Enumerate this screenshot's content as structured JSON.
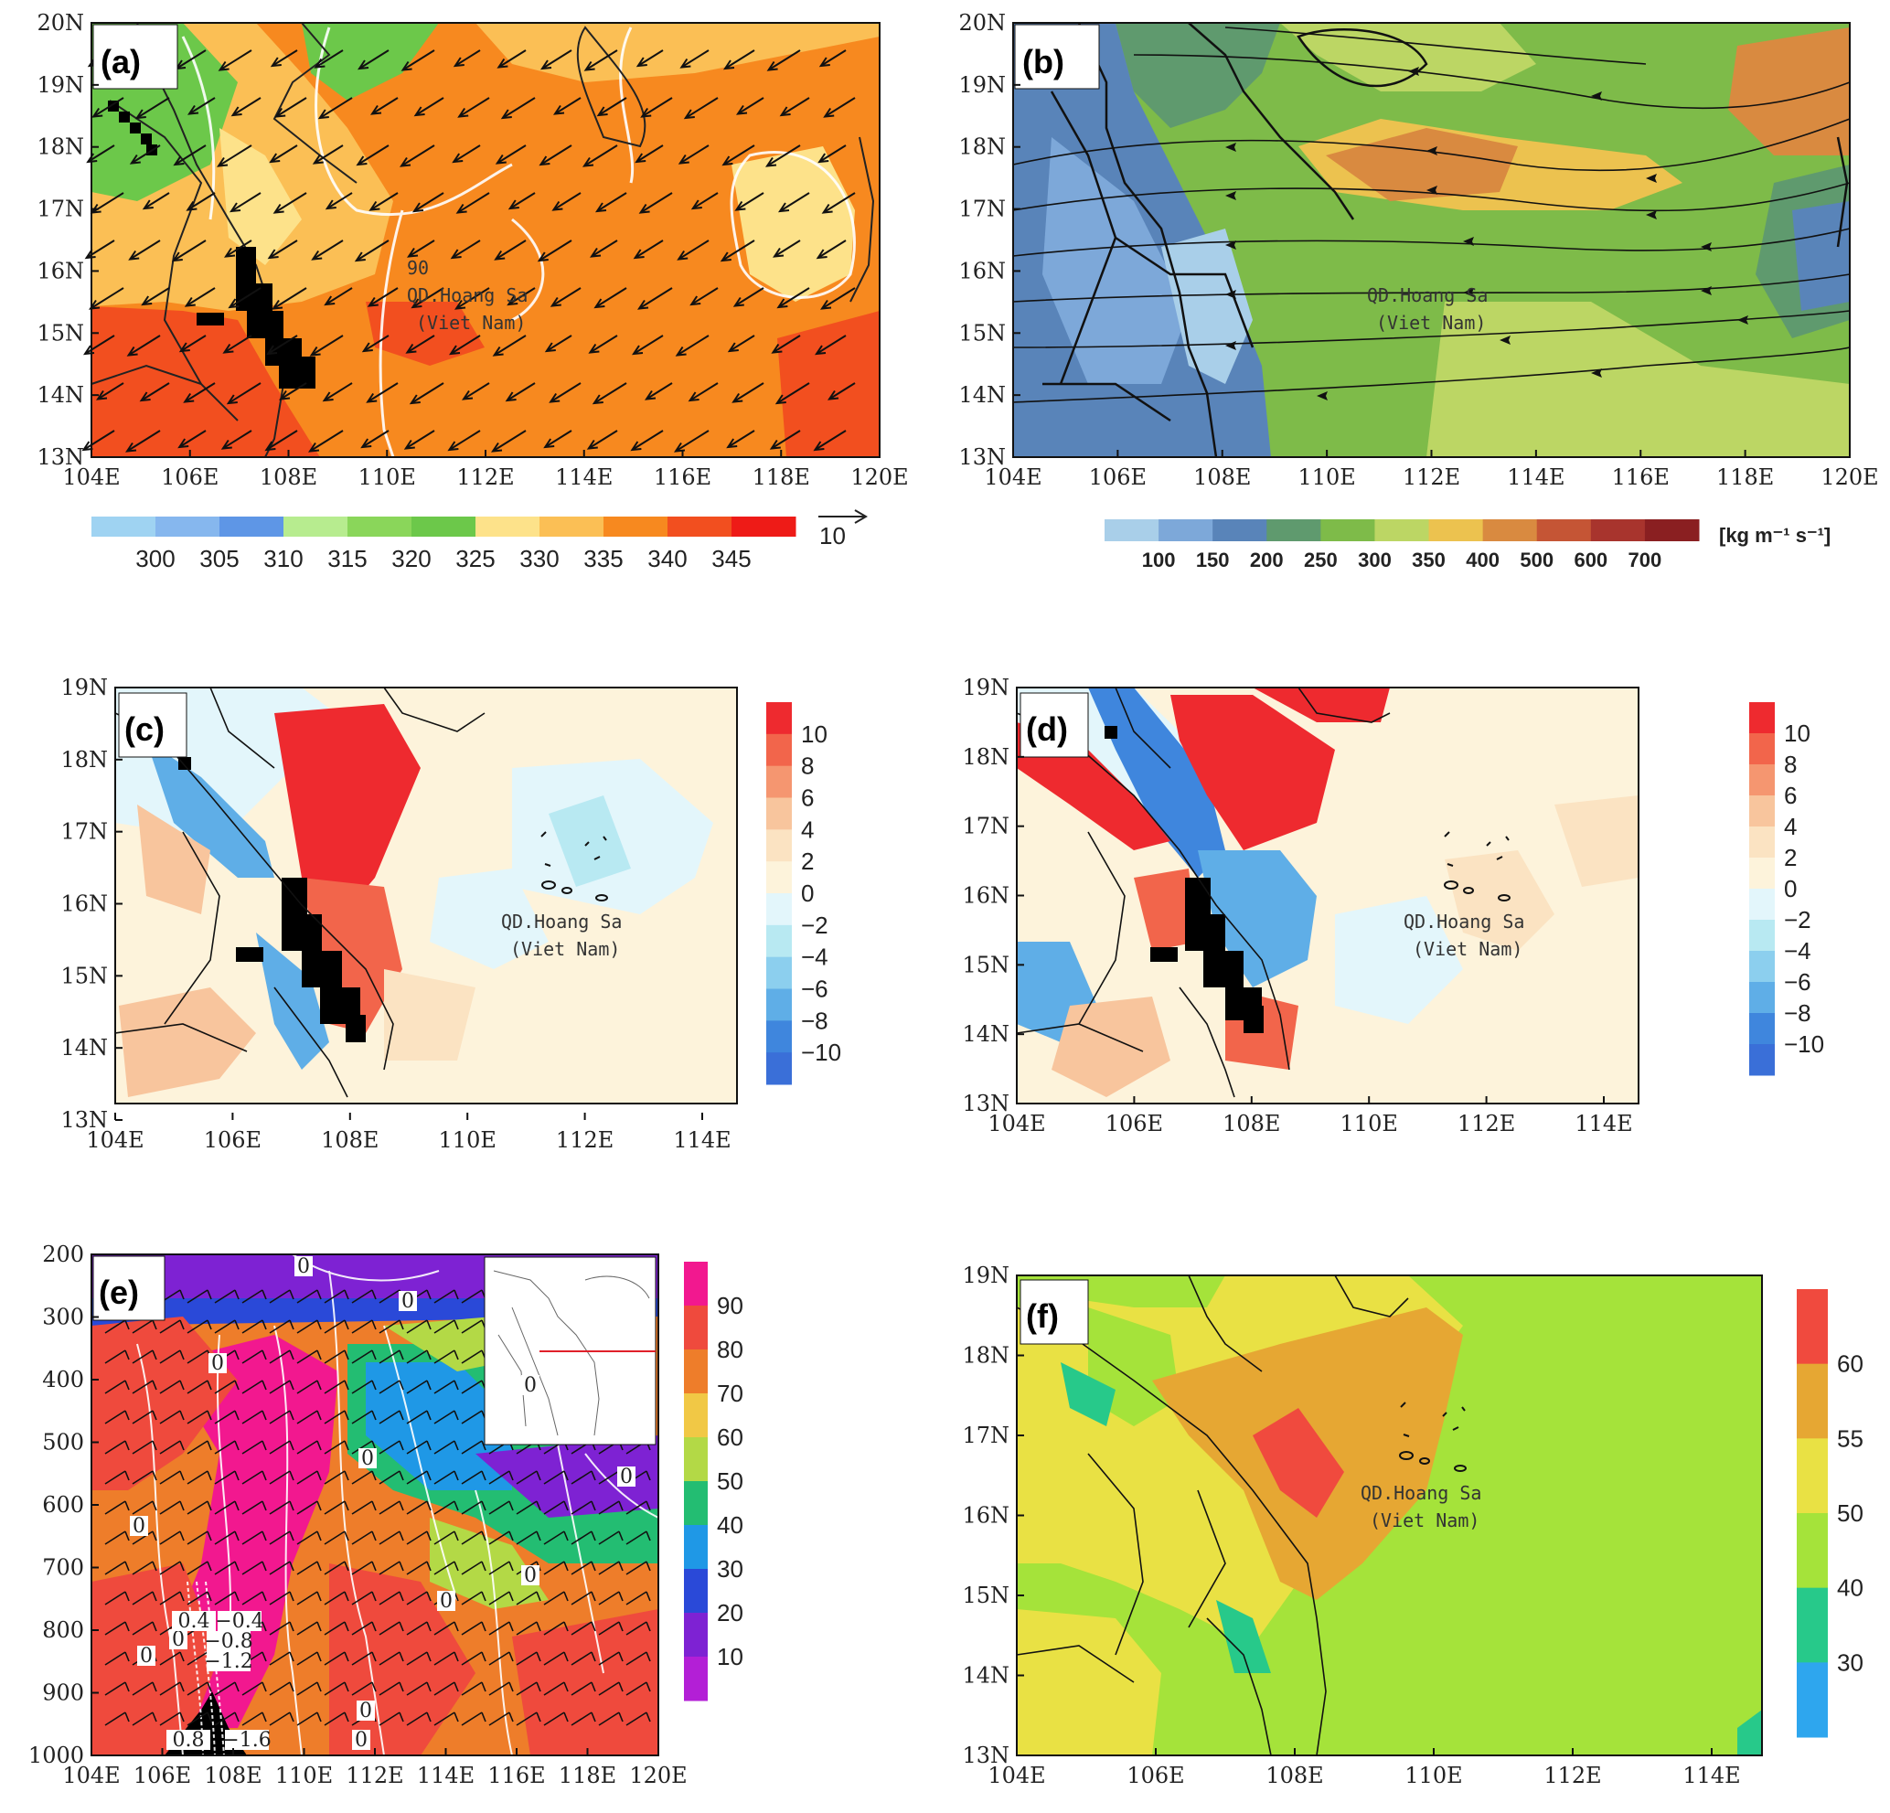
{
  "panels": {
    "a": {
      "label": "(a)",
      "x_ticks": [
        "104E",
        "106E",
        "108E",
        "110E",
        "112E",
        "114E",
        "116E",
        "118E",
        "120E"
      ],
      "y_ticks": [
        "20N",
        "19N",
        "18N",
        "17N",
        "16N",
        "15N",
        "14N",
        "13N"
      ],
      "place_line1": "QD.Hoang Sa",
      "place_line2": "(Viet Nam)",
      "contour_label": "90",
      "colorbar_values": [
        "300",
        "305",
        "310",
        "315",
        "320",
        "325",
        "330",
        "335",
        "340",
        "345"
      ],
      "colorbar_colors": [
        "#9fd3f2",
        "#86b7ee",
        "#5e96e6",
        "#b7ec8f",
        "#8ad65a",
        "#6cc84a",
        "#fde28a",
        "#fbbf55",
        "#f7891f",
        "#f24f1f",
        "#ee1b17"
      ],
      "vector_ref": "10"
    },
    "b": {
      "label": "(b)",
      "x_ticks": [
        "104E",
        "106E",
        "108E",
        "110E",
        "112E",
        "114E",
        "116E",
        "118E",
        "120E"
      ],
      "y_ticks": [
        "20N",
        "19N",
        "18N",
        "17N",
        "16N",
        "15N",
        "14N",
        "13N"
      ],
      "place_line1": "QD.Hoang Sa",
      "place_line2": "(Viet Nam)",
      "colorbar_values": [
        "100",
        "150",
        "200",
        "250",
        "300",
        "350",
        "400",
        "500",
        "600",
        "700"
      ],
      "colorbar_colors": [
        "#a9cfe9",
        "#7da8d9",
        "#5984b9",
        "#5f9a6e",
        "#7ebb49",
        "#bcd664",
        "#ecc24f",
        "#d98a40",
        "#c55535",
        "#a8342d",
        "#8a1f21"
      ],
      "unit": "[kg m⁻¹ s⁻¹]"
    },
    "c": {
      "label": "(c)",
      "x_ticks": [
        "104E",
        "106E",
        "108E",
        "110E",
        "112E",
        "114E"
      ],
      "y_ticks": [
        "19N",
        "18N",
        "17N",
        "16N",
        "15N",
        "14N",
        "13N"
      ],
      "place_line1": "QD.Hoang Sa",
      "place_line2": "(Viet Nam)",
      "colorbar_values": [
        "10",
        "8",
        "6",
        "4",
        "2",
        "0",
        "−2",
        "−4",
        "−6",
        "−8",
        "−10"
      ],
      "colorbar_colors": [
        "#ee2a2f",
        "#f2654b",
        "#f59670",
        "#f8c59d",
        "#fbe3c2",
        "#fdf3db",
        "#e3f6fb",
        "#b8e9f2",
        "#8ccfee",
        "#5faee7",
        "#3f86dd",
        "#3a6fd8"
      ]
    },
    "d": {
      "label": "(d)",
      "x_ticks": [
        "104E",
        "106E",
        "108E",
        "110E",
        "112E",
        "114E"
      ],
      "y_ticks": [
        "19N",
        "18N",
        "17N",
        "16N",
        "15N",
        "14N",
        "13N"
      ],
      "place_line1": "QD.Hoang Sa",
      "place_line2": "(Viet Nam)",
      "colorbar_values": [
        "10",
        "8",
        "6",
        "4",
        "2",
        "0",
        "−2",
        "−4",
        "−6",
        "−8",
        "−10"
      ],
      "colorbar_colors": [
        "#ee2a2f",
        "#f2654b",
        "#f59670",
        "#f8c59d",
        "#fbe3c2",
        "#fdf3db",
        "#e3f6fb",
        "#b8e9f2",
        "#8ccfee",
        "#5faee7",
        "#3f86dd",
        "#3a6fd8"
      ]
    },
    "e": {
      "label": "(e)",
      "x_ticks": [
        "104E",
        "106E",
        "108E",
        "110E",
        "112E",
        "114E",
        "116E",
        "118E",
        "120E"
      ],
      "y_ticks": [
        "200",
        "300",
        "400",
        "500",
        "600",
        "700",
        "800",
        "900",
        "1000"
      ],
      "colorbar_values": [
        "90",
        "80",
        "70",
        "60",
        "50",
        "40",
        "30",
        "20",
        "10"
      ],
      "colorbar_colors": [
        "#f2188f",
        "#ef4a3d",
        "#ee7d2a",
        "#f1c845",
        "#b3d946",
        "#23bd72",
        "#1f98e6",
        "#2a49d8",
        "#7e22d3",
        "#b31fd6"
      ],
      "contour_labels": [
        "0",
        "0",
        "0",
        "0",
        "0",
        "0",
        "0",
        "0",
        "0",
        "0",
        "0",
        "0",
        "0"
      ],
      "labels_cluster": [
        "0.4",
        "−0.4",
        "−0.8",
        "−1.2",
        "−1.6",
        "0.8"
      ]
    },
    "f": {
      "label": "(f)",
      "x_ticks": [
        "104E",
        "106E",
        "108E",
        "110E",
        "112E",
        "114E"
      ],
      "y_ticks": [
        "19N",
        "18N",
        "17N",
        "16N",
        "15N",
        "14N",
        "13N"
      ],
      "place_line1": "QD.Hoang Sa",
      "place_line2": "(Viet Nam)",
      "colorbar_values": [
        "60",
        "55",
        "50",
        "40",
        "30"
      ],
      "colorbar_colors": [
        "#f04a3e",
        "#e6a733",
        "#e9e144",
        "#a5e33a",
        "#27c98a",
        "#2ea6ee"
      ]
    }
  }
}
